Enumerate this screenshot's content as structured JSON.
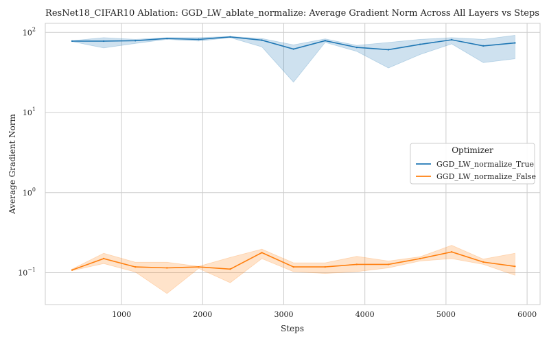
{
  "chart_data": {
    "type": "line",
    "title": "ResNet18_CIFAR10 Ablation: GGD_LW_ablate_normalize: Average Gradient Norm Across All Layers vs Steps",
    "xlabel": "Steps",
    "ylabel": "Average Gradient Norm",
    "xlim": [
      60,
      6160
    ],
    "ylim": [
      0.04,
      130
    ],
    "yscale": "log",
    "grid": true,
    "x_ticks": [
      1000,
      2000,
      3000,
      4000,
      5000,
      6000
    ],
    "y_ticks": [
      {
        "value": 0.1,
        "base": "10",
        "exp": "−1"
      },
      {
        "value": 1,
        "base": "10",
        "exp": "0"
      },
      {
        "value": 10,
        "base": "10",
        "exp": "1"
      },
      {
        "value": 100,
        "base": "10",
        "exp": "2"
      }
    ],
    "legend": {
      "title": "Optimizer",
      "position": "center-right"
    },
    "series": [
      {
        "name": "GGD_LW_normalize_True",
        "color": "#1f77b4",
        "x": [
          390,
          780,
          1170,
          1560,
          1950,
          2340,
          2730,
          3120,
          3510,
          3900,
          4290,
          4680,
          5070,
          5460,
          5850
        ],
        "y": [
          78,
          78,
          79,
          84,
          82,
          88,
          80,
          62,
          79,
          65,
          61,
          71,
          81,
          68,
          74
        ],
        "lower": [
          77,
          64,
          73,
          82,
          78,
          86,
          66,
          24,
          75,
          58,
          36,
          53,
          72,
          42,
          47
        ],
        "upper": [
          79,
          86,
          82,
          86,
          86,
          89,
          84,
          70,
          83,
          69,
          75,
          82,
          86,
          82,
          92
        ]
      },
      {
        "name": "GGD_LW_normalize_False",
        "color": "#ff7f0e",
        "x": [
          390,
          780,
          1170,
          1560,
          1950,
          2340,
          2730,
          3120,
          3510,
          3900,
          4290,
          4680,
          5070,
          5460,
          5850
        ],
        "y": [
          0.108,
          0.15,
          0.118,
          0.115,
          0.118,
          0.111,
          0.178,
          0.118,
          0.118,
          0.127,
          0.127,
          0.15,
          0.182,
          0.136,
          0.12
        ],
        "lower": [
          0.106,
          0.13,
          0.102,
          0.055,
          0.113,
          0.075,
          0.15,
          0.103,
          0.098,
          0.103,
          0.115,
          0.14,
          0.15,
          0.127,
          0.093
        ],
        "upper": [
          0.111,
          0.175,
          0.135,
          0.135,
          0.12,
          0.155,
          0.197,
          0.133,
          0.133,
          0.16,
          0.14,
          0.158,
          0.22,
          0.148,
          0.175
        ]
      }
    ]
  }
}
